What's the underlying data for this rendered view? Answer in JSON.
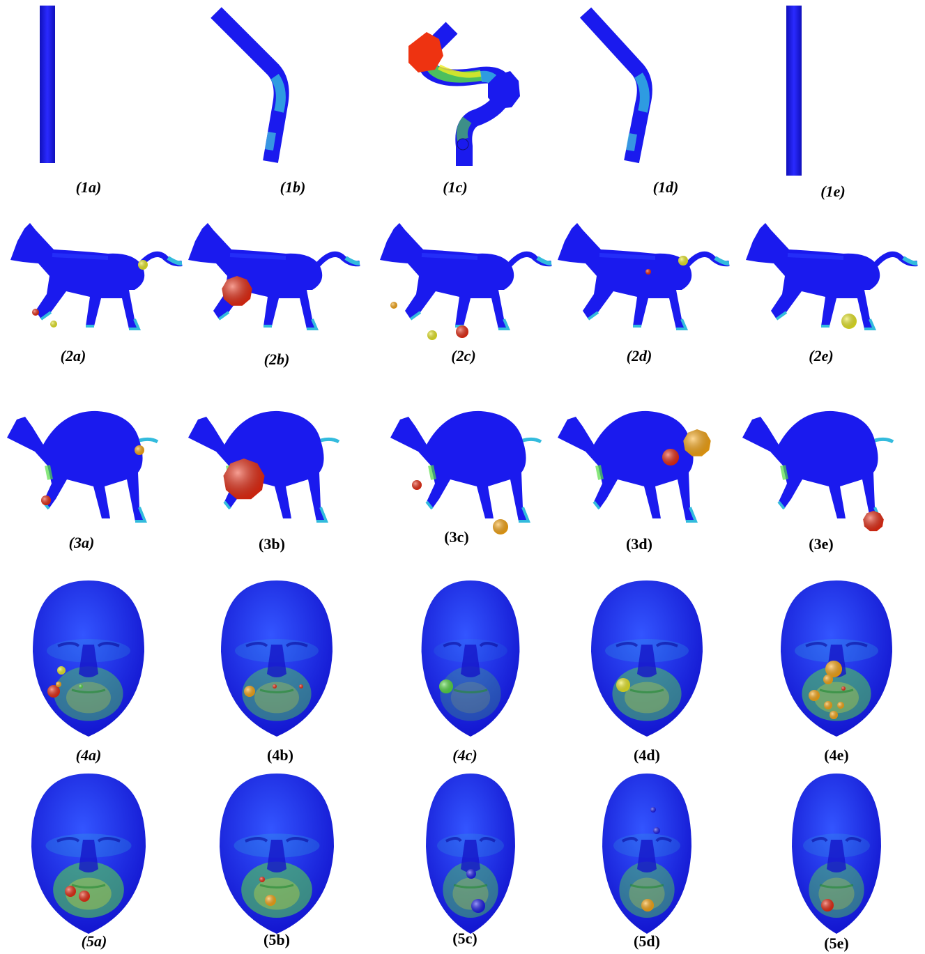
{
  "figure": {
    "colors": {
      "blue": "#1a1aee",
      "cyan": "#33bbdd",
      "green": "#55dd44",
      "yellow": "#eeee22",
      "orange": "#ffaa11",
      "red": "#ee2a11"
    },
    "rows": [
      {
        "subject": "bar",
        "panels": [
          {
            "label": "(1a)",
            "num": "1",
            "letter": "a",
            "italic": true
          },
          {
            "label": "(1b)",
            "num": "1",
            "letter": "b",
            "italic": true
          },
          {
            "label": "(1c)",
            "num": "1",
            "letter": "c",
            "italic": true
          },
          {
            "label": "(1d)",
            "num": "1",
            "letter": "d",
            "italic": true
          },
          {
            "label": "(1e)",
            "num": "1",
            "letter": "e",
            "italic": true
          }
        ]
      },
      {
        "subject": "horse",
        "panels": [
          {
            "label": "(2a)",
            "num": "2",
            "letter": "a",
            "italic": true
          },
          {
            "label": "(2b)",
            "num": "2",
            "letter": "b",
            "italic": true
          },
          {
            "label": "(2c)",
            "num": "2",
            "letter": "c",
            "italic": true
          },
          {
            "label": "(2d)",
            "num": "2",
            "letter": "d",
            "italic": true
          },
          {
            "label": "(2e)",
            "num": "2",
            "letter": "e",
            "italic": true
          }
        ]
      },
      {
        "subject": "camel",
        "panels": [
          {
            "label": "(3a)",
            "num": "3",
            "letter": "a",
            "italic": true
          },
          {
            "label": "(3b)",
            "num": "3",
            "letter": "b",
            "italic": false
          },
          {
            "label": "(3c)",
            "num": "3",
            "letter": "c",
            "italic": false
          },
          {
            "label": "(3d)",
            "num": "3",
            "letter": "d",
            "italic": false
          },
          {
            "label": "(3e)",
            "num": "3",
            "letter": "e",
            "italic": false
          }
        ]
      },
      {
        "subject": "face",
        "panels": [
          {
            "label": "(4a)",
            "num": "4",
            "letter": "a",
            "italic": true
          },
          {
            "label": "(4b)",
            "num": "4",
            "letter": "b",
            "italic": false
          },
          {
            "label": "(4c)",
            "num": "4",
            "letter": "c",
            "italic": true
          },
          {
            "label": "(4d)",
            "num": "4",
            "letter": "d",
            "italic": false
          },
          {
            "label": "(4e)",
            "num": "4",
            "letter": "e",
            "italic": false
          }
        ]
      },
      {
        "subject": "face",
        "panels": [
          {
            "label": "(5a)",
            "num": "5",
            "letter": "a",
            "italic": true
          },
          {
            "label": "(5b)",
            "num": "5",
            "letter": "b",
            "italic": false
          },
          {
            "label": "(5c)",
            "num": "5",
            "letter": "c",
            "italic": false
          },
          {
            "label": "(5d)",
            "num": "5",
            "letter": "d",
            "italic": false
          },
          {
            "label": "(5e)",
            "num": "5",
            "letter": "e",
            "italic": false
          }
        ]
      }
    ]
  }
}
